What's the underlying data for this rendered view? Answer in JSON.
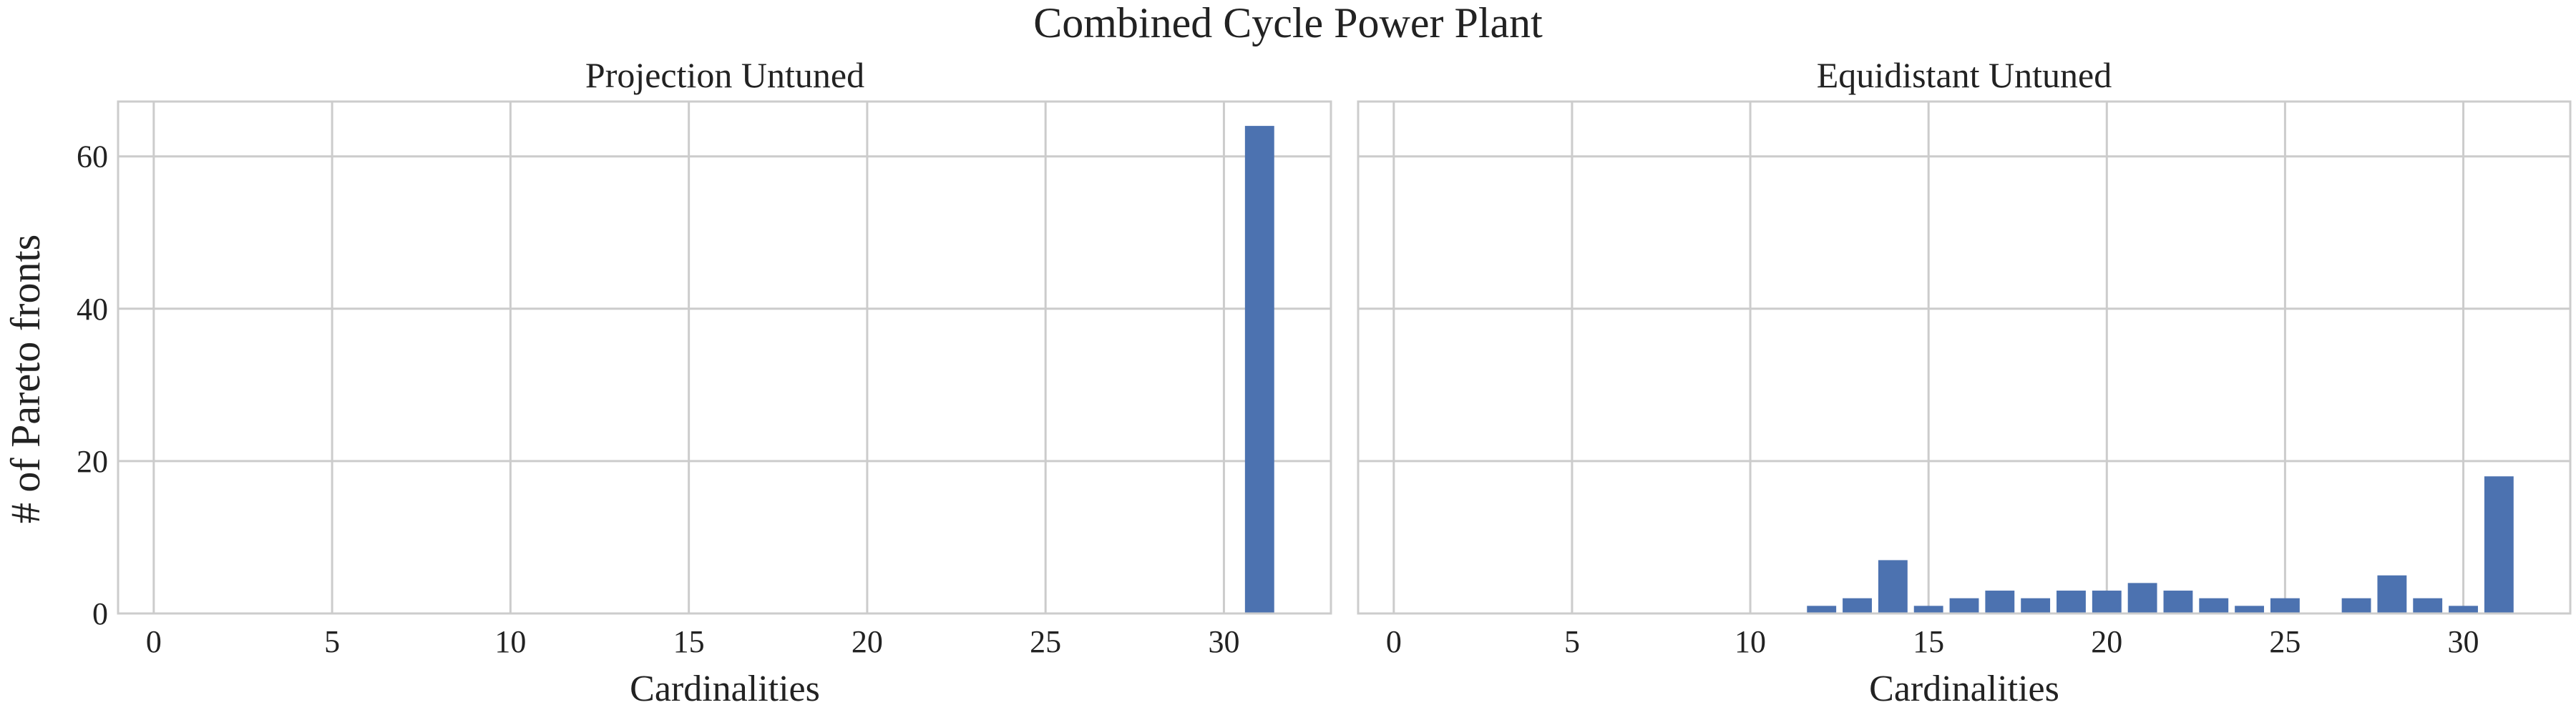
{
  "figure": {
    "title": "Combined Cycle Power Plant",
    "ylabel": "# of Pareto fronts"
  },
  "chart_data": [
    {
      "type": "bar",
      "title": "Projection Untuned",
      "xlabel": "Cardinalities",
      "ylabel": "# of Pareto fronts",
      "x": [
        31
      ],
      "values": [
        64
      ],
      "xlim": [
        -1,
        33
      ],
      "ylim": [
        0,
        67.2
      ],
      "xticks": [
        0,
        5,
        10,
        15,
        20,
        25,
        30
      ],
      "yticks": [
        0,
        20,
        40,
        60
      ],
      "grid": true,
      "color": "#4c72b0"
    },
    {
      "type": "bar",
      "title": "Equidistant Untuned",
      "xlabel": "Cardinalities",
      "ylabel": "",
      "x": [
        12,
        13,
        14,
        15,
        16,
        17,
        18,
        19,
        20,
        21,
        22,
        23,
        24,
        25,
        27,
        28,
        29,
        30,
        31
      ],
      "values": [
        1,
        2,
        7,
        1,
        2,
        3,
        2,
        3,
        3,
        4,
        3,
        2,
        1,
        2,
        2,
        5,
        2,
        1,
        18
      ],
      "xlim": [
        -1,
        33
      ],
      "ylim": [
        0,
        67.2
      ],
      "xticks": [
        0,
        5,
        10,
        15,
        20,
        25,
        30
      ],
      "yticks": [
        0,
        20,
        40,
        60
      ],
      "grid": true,
      "color": "#4c72b0"
    }
  ]
}
